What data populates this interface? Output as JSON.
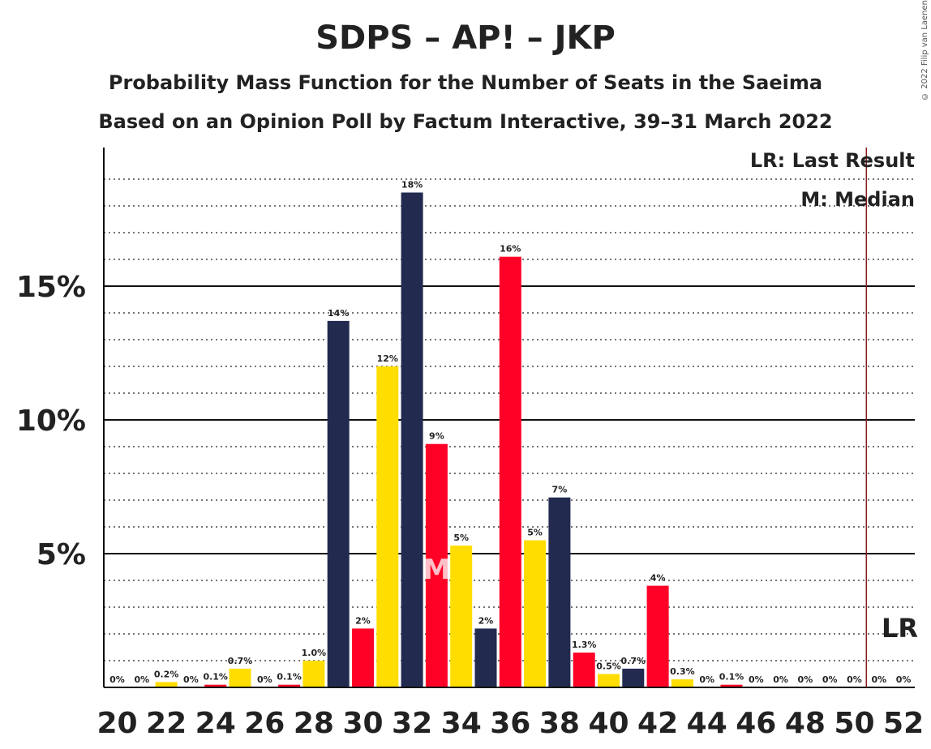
{
  "title": "SDPS – AP! – JKP",
  "subtitle1": "Probability Mass Function for the Number of Seats in the Saeima",
  "subtitle2": "Based on an Opinion Poll by Factum Interactive, 39–31 March 2022",
  "copyright": "© 2022 Filip van Laenen",
  "legend": {
    "lr": "LR: Last Result",
    "m": "M: Median"
  },
  "markers": {
    "median_label": "M",
    "lr_label": "LR",
    "median_seat": 33,
    "last_result_seat": 51
  },
  "colors": {
    "navy": "#222A50",
    "red": "#FF0026",
    "yellow": "#FFDD00",
    "lr_line": "#8B1A1A"
  },
  "chart_data": {
    "type": "bar",
    "x": [
      20,
      21,
      22,
      23,
      24,
      25,
      26,
      27,
      28,
      29,
      30,
      31,
      32,
      33,
      34,
      35,
      36,
      37,
      38,
      39,
      40,
      41,
      42,
      43,
      44,
      45,
      46,
      47,
      48,
      49,
      50,
      51,
      52
    ],
    "values": [
      0,
      0,
      0.2,
      0,
      0.1,
      0.7,
      0,
      0.1,
      1.0,
      13.7,
      2.2,
      12.0,
      18.5,
      9.1,
      5.3,
      2.2,
      16.1,
      5.5,
      7.1,
      1.3,
      0.5,
      0.7,
      3.8,
      0.3,
      0,
      0.1,
      0,
      0,
      0,
      0,
      0,
      0,
      0
    ],
    "labels": [
      "0%",
      "0%",
      "0.2%",
      "0%",
      "0.1%",
      "0.7%",
      "0%",
      "0.1%",
      "1.0%",
      "14%",
      "2%",
      "12%",
      "18%",
      "9%",
      "5%",
      "2%",
      "16%",
      "5%",
      "7%",
      "1.3%",
      "0.5%",
      "0.7%",
      "4%",
      "0.3%",
      "0%",
      "0.1%",
      "0%",
      "0%",
      "0%",
      "0%",
      "0%",
      "0%",
      "0%"
    ],
    "bar_colors": [
      "navy",
      "red",
      "yellow",
      "navy",
      "red",
      "yellow",
      "navy",
      "red",
      "yellow",
      "navy",
      "red",
      "yellow",
      "navy",
      "red",
      "yellow",
      "navy",
      "red",
      "yellow",
      "navy",
      "red",
      "yellow",
      "navy",
      "red",
      "yellow",
      "navy",
      "red",
      "yellow",
      "navy",
      "red",
      "yellow",
      "navy",
      "red",
      "yellow"
    ],
    "x_tick_labels": [
      "20",
      "22",
      "24",
      "26",
      "28",
      "30",
      "32",
      "34",
      "36",
      "38",
      "40",
      "42",
      "44",
      "46",
      "48",
      "50",
      "52"
    ],
    "y_ticks": [
      {
        "value": 5,
        "label": "5%"
      },
      {
        "value": 10,
        "label": "10%"
      },
      {
        "value": 15,
        "label": "15%"
      }
    ],
    "ylim": [
      0,
      20
    ],
    "grid": true
  }
}
